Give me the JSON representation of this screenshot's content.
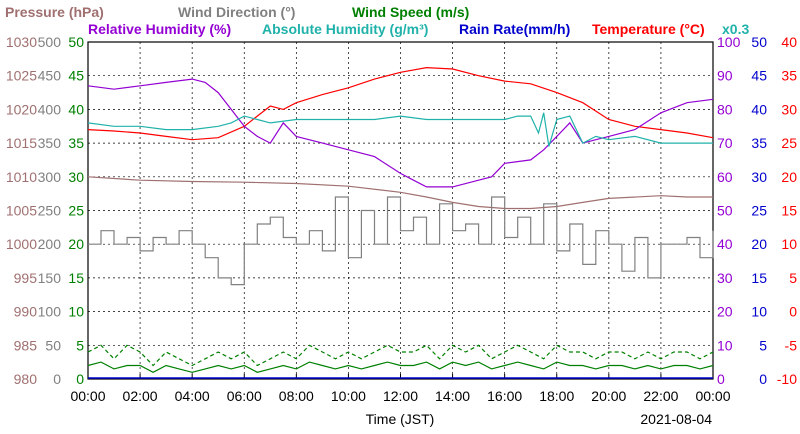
{
  "chart_data": {
    "type": "line",
    "date": "2021-08-04",
    "xlabel": "Time (JST)",
    "x_ticks": [
      "00:00",
      "02:00",
      "04:00",
      "06:00",
      "08:00",
      "10:00",
      "12:00",
      "14:00",
      "16:00",
      "18:00",
      "20:00",
      "22:00",
      "00:00"
    ],
    "x_range_hours": [
      0,
      24
    ],
    "grid": true,
    "legend": [
      {
        "text": "Pressure (hPa)",
        "color": "#a07070"
      },
      {
        "text": "Wind Direction (°)",
        "color": "#808080"
      },
      {
        "text": "Wind Speed (m/s)",
        "color": "#008000"
      },
      {
        "text": "Relative Humidity (%)",
        "color": "#9400d3"
      },
      {
        "text": "Absolute Humidity (g/m³)",
        "color": "#20b2aa"
      },
      {
        "text": "Rain Rate(mm/h)",
        "color": "#0000cd"
      },
      {
        "text": "Temperature (°C)",
        "color": "#ff0000"
      },
      {
        "text": "x0.3",
        "color": "#20b2aa"
      }
    ],
    "axes": [
      {
        "name": "pressure",
        "side": "left",
        "color": "#a07070",
        "range": [
          980,
          1030
        ],
        "ticks": [
          "1030",
          "1025",
          "1020",
          "1015",
          "1010",
          "1005",
          "1000",
          "995",
          "990",
          "985",
          "980"
        ]
      },
      {
        "name": "wind_direction",
        "side": "left",
        "color": "#808080",
        "range": [
          0,
          500
        ],
        "ticks": [
          "500",
          "450",
          "400",
          "350",
          "300",
          "250",
          "200",
          "150",
          "100",
          "50",
          "0"
        ]
      },
      {
        "name": "wind_speed",
        "side": "left",
        "color": "#008000",
        "range": [
          0,
          50
        ],
        "ticks": [
          "50",
          "45",
          "40",
          "35",
          "30",
          "25",
          "20",
          "15",
          "10",
          "5",
          "0"
        ]
      },
      {
        "name": "relative_humidity",
        "side": "right",
        "color": "#9400d3",
        "range": [
          0,
          100
        ],
        "ticks": [
          "100",
          "90",
          "80",
          "70",
          "60",
          "50",
          "40",
          "30",
          "20",
          "10",
          "0"
        ]
      },
      {
        "name": "rain_rate",
        "side": "right",
        "color": "#0000cd",
        "range": [
          0,
          50
        ],
        "ticks": [
          "50",
          "45",
          "40",
          "35",
          "30",
          "25",
          "20",
          "15",
          "10",
          "5",
          "0"
        ]
      },
      {
        "name": "temperature",
        "side": "right",
        "color": "#ff0000",
        "range": [
          -10,
          40
        ],
        "ticks": [
          "40",
          "35",
          "30",
          "25",
          "20",
          "15",
          "10",
          "5",
          "0",
          "-5",
          "-10"
        ]
      }
    ],
    "series": [
      {
        "name": "Temperature (°C)",
        "axis": "temperature",
        "color": "#ff0000",
        "x": [
          0,
          1,
          2,
          3,
          4,
          5,
          6,
          6.5,
          7,
          7.5,
          8,
          9,
          10,
          11,
          12,
          13,
          14,
          15,
          16,
          17,
          18,
          19,
          20,
          21,
          22,
          23,
          24
        ],
        "values": [
          27.0,
          26.8,
          26.5,
          26.0,
          25.5,
          25.8,
          27.5,
          29.0,
          30.5,
          30.0,
          31.0,
          32.2,
          33.2,
          34.5,
          35.5,
          36.2,
          36.0,
          35.0,
          34.2,
          33.8,
          32.5,
          31.0,
          28.5,
          27.5,
          27.0,
          26.5,
          25.8
        ]
      },
      {
        "name": "Relative Humidity (%)",
        "axis": "relative_humidity",
        "color": "#9400d3",
        "x": [
          0,
          1,
          2,
          3,
          4,
          4.5,
          5,
          5.5,
          6,
          6.5,
          7,
          7.5,
          8,
          9,
          10,
          11,
          12,
          12.5,
          13,
          14,
          15,
          15.5,
          16,
          17,
          17.5,
          18,
          18.5,
          19,
          19.5,
          20,
          21,
          22,
          23,
          24
        ],
        "values": [
          87,
          86,
          87,
          88,
          89,
          88,
          85,
          80,
          75,
          72,
          70,
          76,
          72,
          70,
          68,
          66,
          61,
          59,
          57,
          57,
          59,
          60,
          64,
          65,
          68,
          72,
          76,
          70,
          71,
          72,
          74,
          79,
          82,
          83
        ]
      },
      {
        "name": "Absolute Humidity (g/m³)",
        "axis": "relative_humidity",
        "color": "#20b2aa",
        "x": [
          0,
          1,
          2,
          3,
          4,
          5,
          5.5,
          6,
          6.5,
          7,
          8,
          9,
          10,
          11,
          12,
          13,
          14,
          15,
          16,
          16.5,
          17,
          17.3,
          17.5,
          17.7,
          18,
          18.5,
          19,
          19.5,
          20,
          21,
          22,
          23,
          24
        ],
        "values": [
          76,
          75,
          75,
          74,
          74,
          75,
          76,
          78,
          77,
          76,
          77,
          77,
          77,
          77,
          78,
          77,
          77,
          77,
          77,
          78,
          78,
          73,
          79,
          69,
          77,
          78,
          70,
          72,
          71,
          72,
          70,
          70,
          70
        ]
      },
      {
        "name": "Pressure (hPa)",
        "axis": "pressure",
        "color": "#a07070",
        "x": [
          0,
          2,
          4,
          6,
          8,
          10,
          12,
          13,
          14,
          15,
          16,
          17,
          18,
          19,
          20,
          22,
          23,
          24
        ],
        "values": [
          1010,
          1009.5,
          1009.3,
          1009.2,
          1009,
          1008.6,
          1007.7,
          1007,
          1006.2,
          1005.6,
          1005.3,
          1005.3,
          1005.6,
          1006.2,
          1006.8,
          1007.2,
          1007,
          1007
        ]
      },
      {
        "name": "Wind Direction (°)",
        "axis": "wind_direction",
        "color": "#808080",
        "style": "step",
        "x": [
          0,
          0.5,
          1,
          1.5,
          2,
          2.5,
          3,
          3.5,
          4,
          4.5,
          5,
          5.5,
          6,
          6.5,
          7,
          7.5,
          8,
          8.5,
          9,
          9.5,
          10,
          10.5,
          11,
          11.5,
          12,
          12.5,
          13,
          13.5,
          14,
          14.5,
          15,
          15.5,
          16,
          16.5,
          17,
          17.5,
          18,
          18.5,
          19,
          19.5,
          20,
          20.5,
          21,
          21.5,
          22,
          22.5,
          23,
          23.5,
          24
        ],
        "values": [
          200,
          220,
          200,
          210,
          190,
          210,
          200,
          220,
          200,
          180,
          150,
          140,
          200,
          230,
          240,
          210,
          200,
          220,
          190,
          270,
          180,
          250,
          200,
          270,
          220,
          240,
          200,
          260,
          220,
          230,
          200,
          270,
          210,
          240,
          200,
          260,
          190,
          230,
          170,
          220,
          200,
          160,
          210,
          150,
          200,
          200,
          210,
          180,
          220
        ]
      },
      {
        "name": "Wind Speed (m/s)",
        "axis": "wind_speed",
        "color": "#008000",
        "style": "dashed",
        "x": [
          0,
          0.5,
          1,
          1.5,
          2,
          2.5,
          3,
          3.5,
          4,
          4.5,
          5,
          5.5,
          6,
          6.5,
          7,
          7.5,
          8,
          8.5,
          9,
          9.5,
          10,
          10.5,
          11,
          11.5,
          12,
          12.5,
          13,
          13.5,
          14,
          14.5,
          15,
          15.5,
          16,
          16.5,
          17,
          17.5,
          18,
          18.5,
          19,
          19.5,
          20,
          20.5,
          21,
          21.5,
          22,
          22.5,
          23,
          23.5,
          24
        ],
        "values": [
          4,
          5,
          3,
          5,
          4,
          2,
          4,
          3,
          2,
          3,
          4,
          3,
          4,
          2,
          3,
          4,
          3,
          5,
          4,
          3,
          4,
          3,
          4,
          5,
          4,
          4,
          5,
          3,
          5,
          4,
          5,
          3,
          4,
          5,
          4,
          3,
          5,
          4,
          4,
          3,
          4,
          4,
          3,
          4,
          3,
          4,
          4,
          3,
          4
        ]
      },
      {
        "name": "Wind Speed (m/s)",
        "axis": "wind_speed",
        "color": "#008000",
        "style": "solid",
        "x": [
          0,
          0.5,
          1,
          1.5,
          2,
          2.5,
          3,
          3.5,
          4,
          4.5,
          5,
          5.5,
          6,
          6.5,
          7,
          7.5,
          8,
          8.5,
          9,
          9.5,
          10,
          10.5,
          11,
          11.5,
          12,
          12.5,
          13,
          13.5,
          14,
          14.5,
          15,
          15.5,
          16,
          16.5,
          17,
          17.5,
          18,
          18.5,
          19,
          19.5,
          20,
          20.5,
          21,
          21.5,
          22,
          22.5,
          23,
          23.5,
          24
        ],
        "values": [
          2,
          2.5,
          1.5,
          2,
          2,
          1,
          2,
          1.5,
          1,
          1.5,
          2,
          1.5,
          2,
          1,
          1.5,
          2,
          1.5,
          2.5,
          2,
          1.5,
          2,
          1.5,
          2,
          2.5,
          2,
          2,
          2.5,
          1.5,
          2.5,
          2,
          2.5,
          1.5,
          2,
          2.5,
          2,
          1.5,
          2.5,
          2,
          2,
          1.5,
          2,
          2,
          1.5,
          2,
          1.5,
          2,
          2,
          1.5,
          2
        ]
      }
    ]
  }
}
